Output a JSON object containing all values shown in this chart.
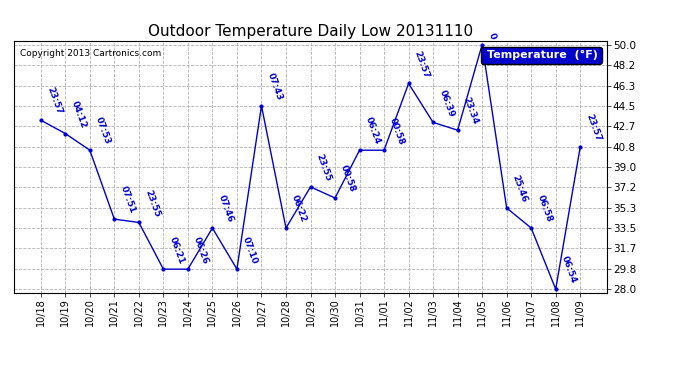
{
  "title": "Outdoor Temperature Daily Low 20131110",
  "copyright": "Copyright 2013 Cartronics.com",
  "legend_label": "Temperature  (°F)",
  "ylim": [
    28.0,
    50.0
  ],
  "yticks": [
    28.0,
    29.8,
    31.7,
    33.5,
    35.3,
    37.2,
    39.0,
    40.8,
    42.7,
    44.5,
    46.3,
    48.2,
    50.0
  ],
  "dates": [
    "10/18",
    "10/19",
    "10/20",
    "10/21",
    "10/22",
    "10/23",
    "10/24",
    "10/25",
    "10/26",
    "10/27",
    "10/28",
    "10/29",
    "10/30",
    "10/31",
    "11/01",
    "11/02",
    "11/03",
    "11/04",
    "11/05",
    "11/06",
    "11/07",
    "11/08",
    "11/09"
  ],
  "values": [
    43.2,
    42.0,
    40.5,
    34.3,
    34.0,
    29.8,
    29.8,
    33.5,
    29.8,
    44.5,
    33.5,
    37.2,
    36.2,
    40.5,
    40.5,
    46.5,
    43.0,
    42.3,
    50.0,
    35.3,
    33.5,
    28.0,
    40.8
  ],
  "labels": [
    "23:57",
    "04:12",
    "07:53",
    "07:51",
    "23:55",
    "06:21",
    "06:26",
    "07:46",
    "07:10",
    "07:43",
    "06:22",
    "23:55",
    "00:58",
    "06:24",
    "00:58",
    "23:57",
    "06:39",
    "23:34",
    "0",
    "25:46",
    "06:58",
    "06:54",
    "23:57"
  ],
  "line_color": "#0000cd",
  "label_color": "#0000cd",
  "bg_color": "#ffffff",
  "grid_color": "#aaaaaa",
  "title_color": "#000000",
  "legend_bg": "#0000cd",
  "legend_text": "#ffffff"
}
